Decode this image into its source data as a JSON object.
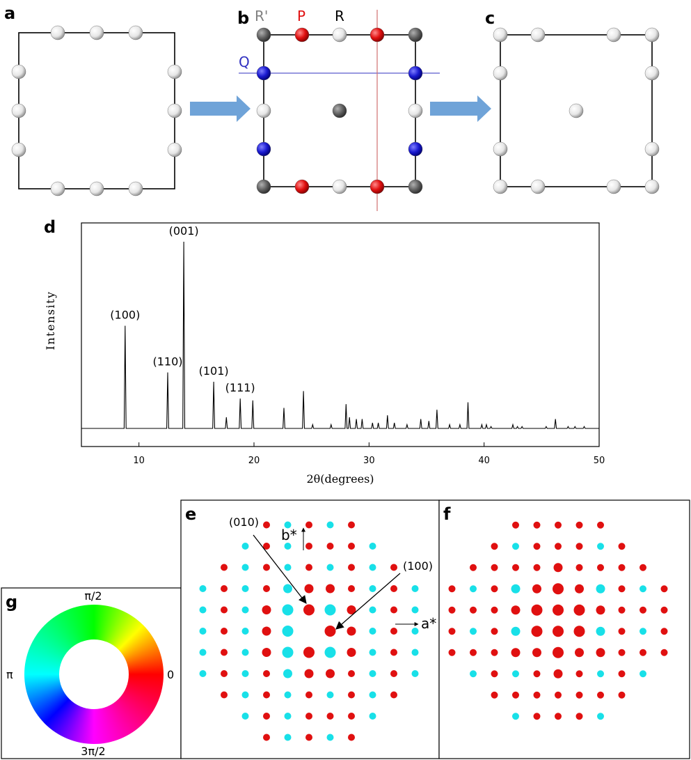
{
  "panels": {
    "a": "a",
    "b": "b",
    "c": "c",
    "d": "d",
    "e": "e",
    "f": "f",
    "g": "g"
  },
  "lattice_b": {
    "label_rprime": "R'",
    "label_p": "P",
    "label_r": "R",
    "label_q": "Q"
  },
  "colors": {
    "white_atom": "#f0f0f0",
    "gray_atom": "#5a5a5a",
    "red_atom": "#e01010",
    "blue_atom": "#1a1ad0",
    "arrow": "#6fa3d8",
    "spot_red": "#e01010",
    "spot_cyan": "#18e0e8",
    "q_line": "#3030c0",
    "mirror_line": "#d07070"
  },
  "chart_data": {
    "type": "line",
    "xlabel": "2θ(degrees)",
    "ylabel": "Intensity",
    "xlim": [
      5,
      50
    ],
    "xticks": [
      10,
      20,
      30,
      40,
      50
    ],
    "baseline": 0.05,
    "peaks": [
      {
        "x": 8.8,
        "y": 0.55,
        "label": "(100)"
      },
      {
        "x": 12.5,
        "y": 0.3,
        "label": "(110)"
      },
      {
        "x": 13.9,
        "y": 1.0,
        "label": "(001)"
      },
      {
        "x": 16.5,
        "y": 0.25,
        "label": "(101)"
      },
      {
        "x": 17.6,
        "y": 0.06,
        "label": ""
      },
      {
        "x": 18.8,
        "y": 0.16,
        "label": "(111)"
      },
      {
        "x": 19.9,
        "y": 0.15,
        "label": ""
      },
      {
        "x": 22.6,
        "y": 0.11,
        "label": ""
      },
      {
        "x": 24.3,
        "y": 0.2,
        "label": ""
      },
      {
        "x": 25.1,
        "y": 0.02,
        "label": ""
      },
      {
        "x": 26.7,
        "y": 0.02,
        "label": ""
      },
      {
        "x": 28.0,
        "y": 0.13,
        "label": ""
      },
      {
        "x": 28.3,
        "y": 0.06,
        "label": ""
      },
      {
        "x": 28.9,
        "y": 0.05,
        "label": ""
      },
      {
        "x": 29.4,
        "y": 0.05,
        "label": ""
      },
      {
        "x": 30.3,
        "y": 0.03,
        "label": ""
      },
      {
        "x": 30.8,
        "y": 0.03,
        "label": ""
      },
      {
        "x": 31.6,
        "y": 0.07,
        "label": ""
      },
      {
        "x": 32.2,
        "y": 0.03,
        "label": ""
      },
      {
        "x": 33.3,
        "y": 0.02,
        "label": ""
      },
      {
        "x": 34.5,
        "y": 0.05,
        "label": ""
      },
      {
        "x": 35.2,
        "y": 0.04,
        "label": ""
      },
      {
        "x": 35.9,
        "y": 0.1,
        "label": ""
      },
      {
        "x": 37.0,
        "y": 0.02,
        "label": ""
      },
      {
        "x": 37.9,
        "y": 0.02,
        "label": ""
      },
      {
        "x": 38.6,
        "y": 0.14,
        "label": ""
      },
      {
        "x": 39.8,
        "y": 0.02,
        "label": ""
      },
      {
        "x": 40.2,
        "y": 0.02,
        "label": ""
      },
      {
        "x": 40.6,
        "y": 0.01,
        "label": ""
      },
      {
        "x": 42.5,
        "y": 0.02,
        "label": ""
      },
      {
        "x": 42.9,
        "y": 0.01,
        "label": ""
      },
      {
        "x": 43.3,
        "y": 0.01,
        "label": ""
      },
      {
        "x": 45.4,
        "y": 0.01,
        "label": ""
      },
      {
        "x": 46.2,
        "y": 0.05,
        "label": ""
      },
      {
        "x": 47.3,
        "y": 0.01,
        "label": ""
      },
      {
        "x": 47.9,
        "y": 0.01,
        "label": ""
      },
      {
        "x": 48.7,
        "y": 0.01,
        "label": ""
      }
    ]
  },
  "diffraction": {
    "label_010": "(010)",
    "label_100": "(100)",
    "label_bstar": "b*",
    "label_astar": "a*"
  },
  "color_wheel": {
    "label_top": "π/2",
    "label_left": "π",
    "label_right": "0",
    "label_bottom": "3π/2"
  }
}
